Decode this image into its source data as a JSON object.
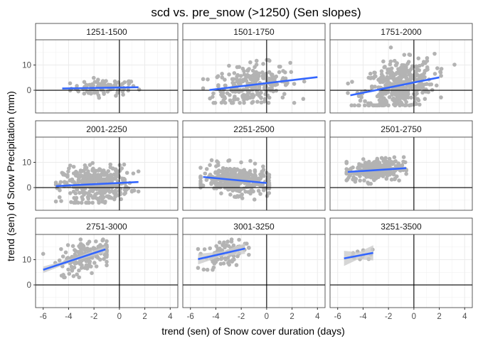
{
  "chart_data": {
    "type": "scatter",
    "title": "scd vs. pre_snow (>1250) (Sen slopes)",
    "xlabel": "trend (sen) of Snow cover duration (days)",
    "ylabel": "trend (sen) of Snow Precipitation (mm)",
    "xlim": [
      -6.6,
      4.6
    ],
    "ylim": [
      -9,
      20
    ],
    "xticks": [
      -6,
      -4,
      -2,
      0,
      2,
      4
    ],
    "xtick_labels": [
      "-6",
      "-4",
      "-2",
      "0",
      "2",
      "4"
    ],
    "yticks": [
      0,
      10
    ],
    "ytick_labels": [
      "0",
      "10"
    ],
    "reference_lines": {
      "x": 0,
      "y": 0
    },
    "grid": true,
    "point_color": "#b3b3b3",
    "line_color": "#3366ff",
    "band_color": "#cccccc",
    "panels": [
      {
        "label": "1251-1500",
        "n": 90,
        "cluster": {
          "x": [
            -4.6,
            1.6
          ],
          "xc": -1.2,
          "xsd": 1.3,
          "y": [
            -3,
            7
          ],
          "ysd": 1.6
        },
        "line": {
          "x": [
            -4.5,
            1.5
          ],
          "y": [
            0.7,
            1.2
          ]
        },
        "band": 0.3
      },
      {
        "label": "1501-1750",
        "n": 260,
        "cluster": {
          "x": [
            -5,
            4
          ],
          "xc": -1.2,
          "xsd": 1.5,
          "y": [
            -5,
            12
          ],
          "ysd": 4
        },
        "line": {
          "x": [
            -4.5,
            4
          ],
          "y": [
            0.1,
            5.2
          ]
        },
        "band": 0.3
      },
      {
        "label": "1751-2000",
        "n": 420,
        "cluster": {
          "x": [
            -5.2,
            3.2
          ],
          "xc": -1.2,
          "xsd": 1.4,
          "y": [
            -6,
            18
          ],
          "ysd": 4.8
        },
        "line": {
          "x": [
            -5,
            2
          ],
          "y": [
            -2,
            5.1
          ]
        },
        "band": 0.3
      },
      {
        "label": "2001-2250",
        "n": 380,
        "cluster": {
          "x": [
            -5,
            1.5
          ],
          "xc": -1.8,
          "xsd": 1.3,
          "y": [
            -6,
            14
          ],
          "ysd": 3.5
        },
        "line": {
          "x": [
            -5,
            1.5
          ],
          "y": [
            0.6,
            2.2
          ]
        },
        "band": 0.3
      },
      {
        "label": "2251-2500",
        "n": 330,
        "cluster": {
          "x": [
            -5.2,
            0.2
          ],
          "xc": -2.4,
          "xsd": 1.3,
          "y": [
            -9,
            12
          ],
          "ysd": 2.8
        },
        "line": {
          "x": [
            -5,
            0
          ],
          "y": [
            4.2,
            1.8
          ]
        },
        "band": 0.3
      },
      {
        "label": "2501-2750",
        "n": 260,
        "cluster": {
          "x": [
            -5.3,
            -0.6
          ],
          "xc": -3,
          "xsd": 1.1,
          "y": [
            0,
            14
          ],
          "ysd": 2.2
        },
        "line": {
          "x": [
            -5.2,
            -0.6
          ],
          "y": [
            6.2,
            7.7
          ]
        },
        "band": 0.5
      },
      {
        "label": "2751-3000",
        "n": 180,
        "cluster": {
          "x": [
            -6,
            -1
          ],
          "xc": -2.5,
          "xsd": 1.1,
          "y": [
            3,
            18
          ],
          "ysd": 3
        },
        "line": {
          "x": [
            -6,
            -1.1
          ],
          "y": [
            6,
            14.1
          ]
        },
        "band": 1.3
      },
      {
        "label": "3001-3250",
        "n": 90,
        "cluster": {
          "x": [
            -5.4,
            -1.4
          ],
          "xc": -3.3,
          "xsd": 0.9,
          "y": [
            6,
            18
          ],
          "ysd": 2.6
        },
        "line": {
          "x": [
            -5.4,
            -1.7
          ],
          "y": [
            10.2,
            14.4
          ]
        },
        "band": 2.1
      },
      {
        "label": "3251-3500",
        "n": 12,
        "cluster": {
          "x": [
            -5.4,
            -3.2
          ],
          "xc": -4.2,
          "xsd": 0.6,
          "y": [
            10,
            14
          ],
          "ysd": 1.4
        },
        "line": {
          "x": [
            -5.5,
            -3.2
          ],
          "y": [
            10.5,
            12.7
          ]
        },
        "band": 3
      }
    ]
  }
}
